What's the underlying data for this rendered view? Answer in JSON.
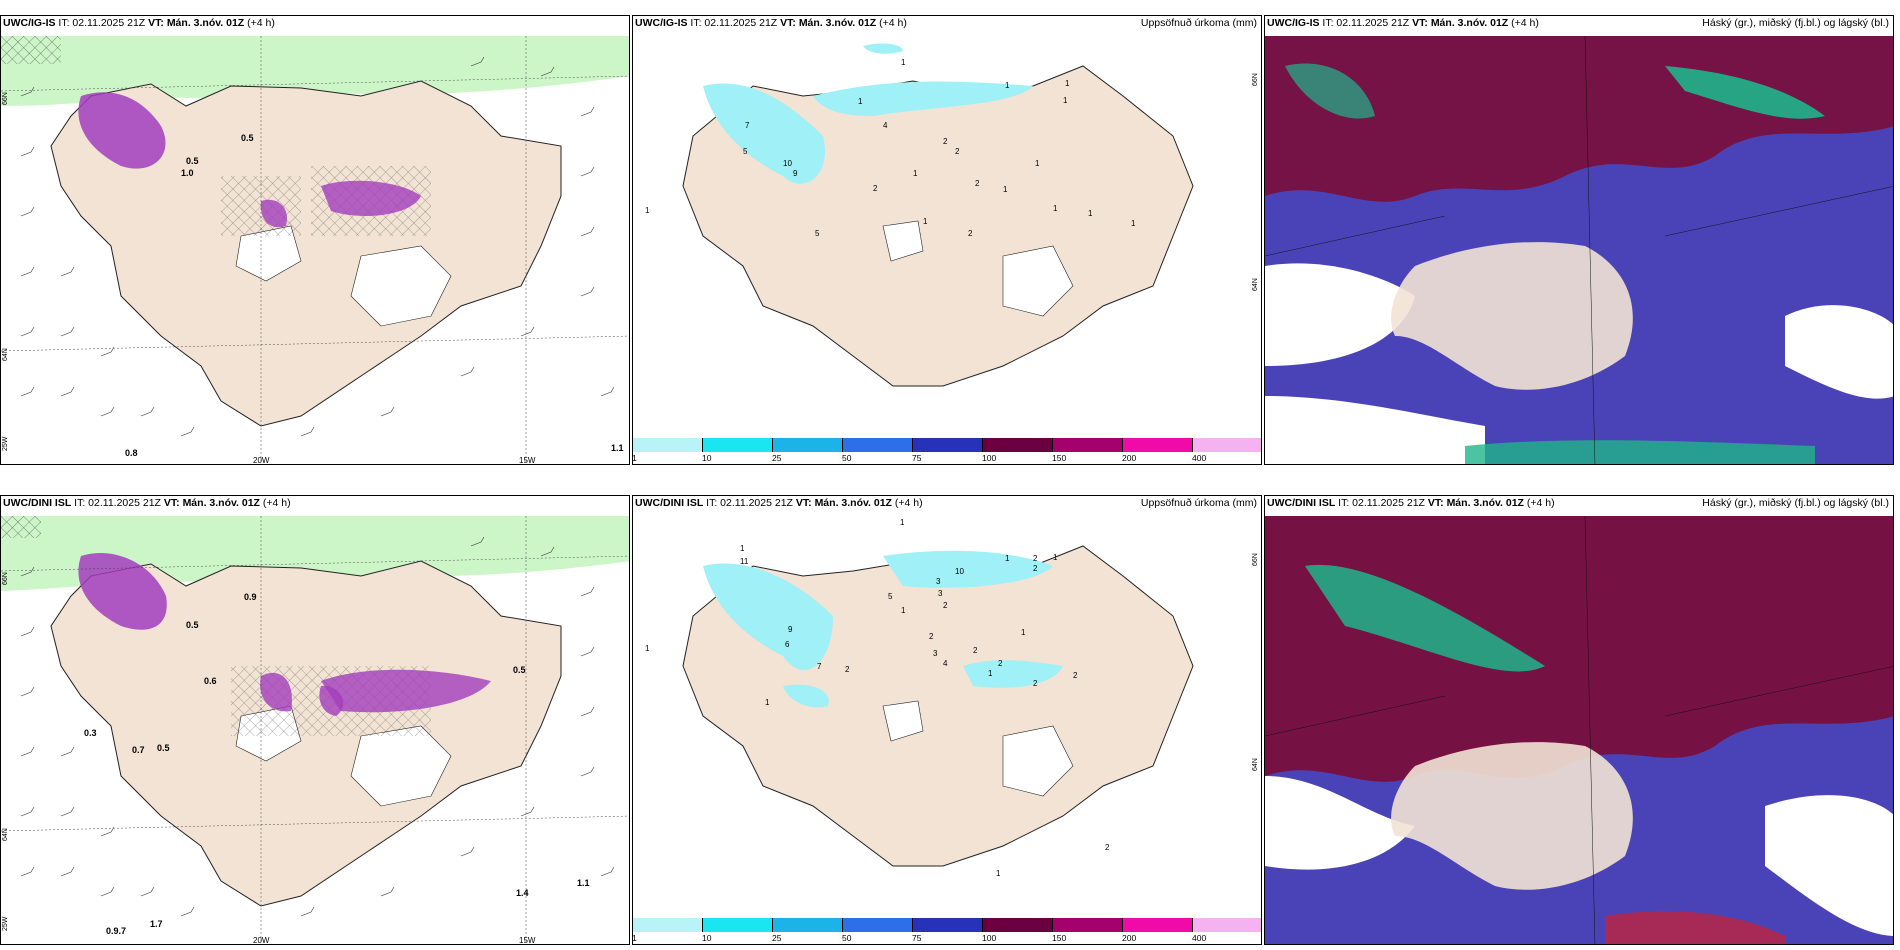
{
  "colors": {
    "land": "#f2e3d4",
    "coast": "#222222",
    "precip_light": "#9ff0f7",
    "cloud_high": "#1fb58a",
    "cloud_mid": "#7a0d3a",
    "cloud_low": "#4a43b8",
    "snow_purple": "#a23dbd",
    "green_band": "#b6f2b0"
  },
  "colorbar": {
    "ticks": [
      "1",
      "10",
      "25",
      "50",
      "75",
      "100",
      "150",
      "200",
      "400"
    ],
    "colors": [
      "#b7f3f7",
      "#19e6f0",
      "#1bb3e8",
      "#2c6fe6",
      "#2633b8",
      "#6a003f",
      "#a3006d",
      "#f00aa8",
      "#f4b3f0"
    ]
  },
  "rows": [
    {
      "model": "UWC/IG-IS",
      "it": "IT: 02.11.2025 21Z",
      "vt_label": "VT:",
      "vt": "Mán. 3.nóv. 01Z",
      "lead": "(+4 h)",
      "precip_title": "Uppsöfnuð úrkoma (mm)",
      "cloud_title": "Háský (gr.), miðský (fj.bl.) og lágský (bl.)",
      "wind_lon_labels": [
        "20W",
        "15W"
      ],
      "wind_lat_labels": [
        "66N",
        "64N",
        "25W"
      ],
      "precip_lat_labels": [
        "66N",
        "64N"
      ],
      "wind_values": [
        "0.8",
        "1.1",
        "0.5",
        "1.0",
        "0.5"
      ],
      "precip_values": [
        "1",
        "1",
        "1",
        "2",
        "2",
        "4",
        "1",
        "1",
        "2",
        "1",
        "5",
        "10",
        "9",
        "7",
        "5",
        "1",
        "2",
        "1",
        "1",
        "2",
        "1",
        "1",
        "1",
        "1"
      ]
    },
    {
      "model": "UWC/DINI ISL",
      "it": "IT: 02.11.2025 21Z",
      "vt_label": "VT:",
      "vt": "Mán. 3.nóv. 01Z",
      "lead": "(+4 h)",
      "precip_title": "Uppsöfnuð úrkoma (mm)",
      "cloud_title": "Háský (gr.), miðský (fj.bl.) og lágský (bl.)",
      "wind_lon_labels": [
        "20W",
        "15W"
      ],
      "wind_lat_labels": [
        "66N",
        "64N",
        "25W"
      ],
      "precip_lat_labels": [
        "66N",
        "64N"
      ],
      "wind_values": [
        "0.9",
        "0.5",
        "0.6",
        "0.3",
        "0.7",
        "0.5",
        "1.4",
        "1.1",
        "1.7",
        "0.9.7",
        "0.5"
      ],
      "precip_values": [
        "1",
        "1",
        "1",
        "1",
        "2",
        "2",
        "10",
        "3",
        "3",
        "2",
        "5",
        "11",
        "9",
        "6",
        "7",
        "2",
        "1",
        "2",
        "3",
        "4",
        "2",
        "1",
        "1",
        "2",
        "2",
        "2",
        "1",
        "1",
        "1",
        "2"
      ]
    }
  ]
}
